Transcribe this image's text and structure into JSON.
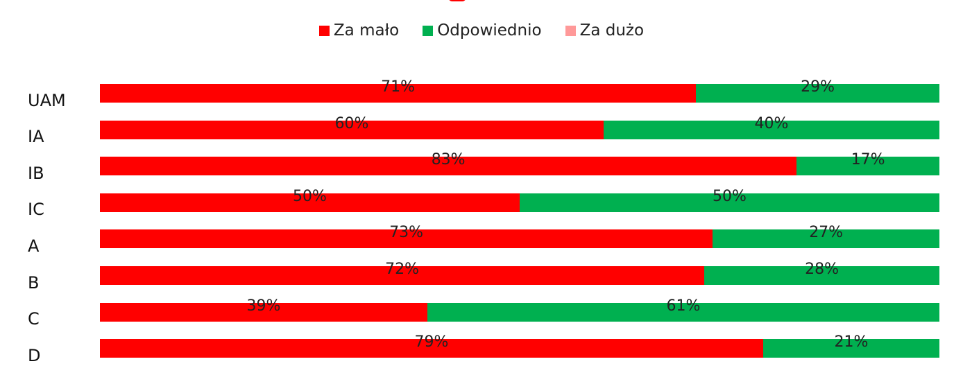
{
  "chart_data": {
    "type": "bar",
    "orientation": "horizontal",
    "stacked": true,
    "percent": true,
    "title": "",
    "xlabel": "",
    "ylabel": "",
    "legend_position": "top",
    "categories": [
      "UAM",
      "IA",
      "IB",
      "IC",
      "A",
      "B",
      "C",
      "D"
    ],
    "series": [
      {
        "name": "Za mało",
        "color": "#ff0000",
        "values": [
          71,
          60,
          83,
          50,
          73,
          72,
          39,
          79
        ]
      },
      {
        "name": "Odpowiednio",
        "color": "#00b050",
        "values": [
          29,
          40,
          17,
          50,
          27,
          28,
          61,
          21
        ]
      },
      {
        "name": "Za dużo",
        "color": "#ff9999",
        "values": [
          0,
          0,
          0,
          0,
          0,
          0,
          0,
          0
        ]
      }
    ],
    "value_labels": [
      [
        "71%",
        "29%"
      ],
      [
        "60%",
        "40%"
      ],
      [
        "83%",
        "17%"
      ],
      [
        "50%",
        "50%"
      ],
      [
        "73%",
        "27%"
      ],
      [
        "72%",
        "28%"
      ],
      [
        "39%",
        "61%"
      ],
      [
        "79%",
        "21%"
      ]
    ],
    "xlim": [
      0,
      100
    ],
    "grid": false
  }
}
